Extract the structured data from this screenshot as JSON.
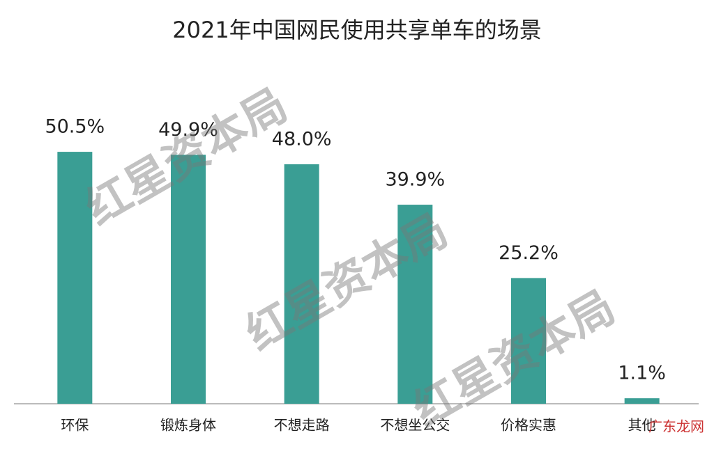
{
  "chart_data": {
    "type": "bar",
    "title": "2021年中国网民使用共享单车的场景",
    "categories": [
      "环保",
      "锻炼身体",
      "不想走路",
      "不想坐公交",
      "价格实惠",
      "其他"
    ],
    "values": [
      50.5,
      49.9,
      48.0,
      39.9,
      25.2,
      1.1
    ],
    "value_labels": [
      "50.5%",
      "49.9%",
      "48.0%",
      "39.9%",
      "25.2%",
      "1.1%"
    ],
    "color": "#3a9e94",
    "ylim": [
      0,
      60
    ],
    "watermark": "红星资本局",
    "source_mark": "广东龙网"
  }
}
